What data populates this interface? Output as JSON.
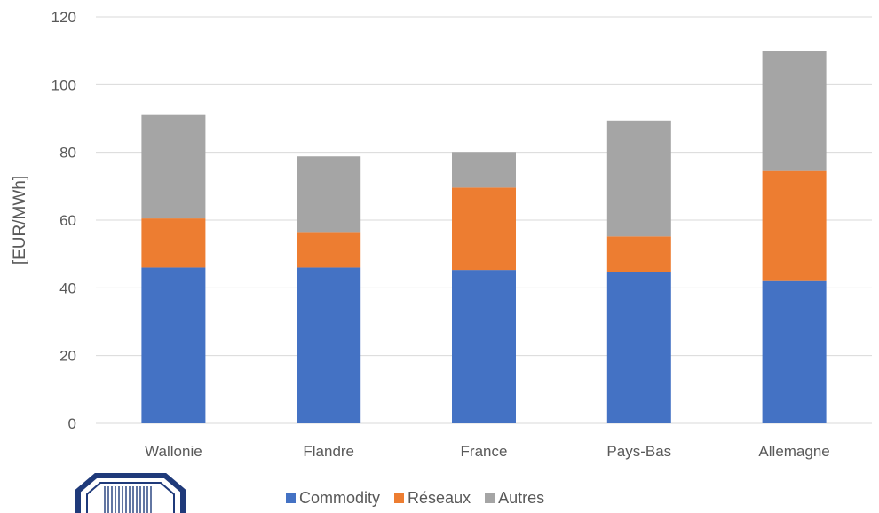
{
  "chart_data": {
    "type": "bar",
    "stacked": true,
    "categories": [
      "Wallonie",
      "Flandre",
      "France",
      "Pays-Bas",
      "Allemagne"
    ],
    "series": [
      {
        "name": "Commodity",
        "color": "#4472C4",
        "values": [
          46,
          46,
          45.3,
          44.8,
          42
        ]
      },
      {
        "name": "Réseaux",
        "color": "#ED7D31",
        "values": [
          14.5,
          10.5,
          24.3,
          10.4,
          32.5
        ]
      },
      {
        "name": "Autres",
        "color": "#A5A5A5",
        "values": [
          30.5,
          22.3,
          10.5,
          34.2,
          35.5
        ]
      }
    ],
    "ylabel": "[EUR/MWh]",
    "ylim": [
      0,
      120
    ],
    "yticks": [
      0,
      20,
      40,
      60,
      80,
      100,
      120
    ],
    "grid": true,
    "legend": "bottom"
  },
  "logo": {
    "name": "seal-logo-partial"
  }
}
